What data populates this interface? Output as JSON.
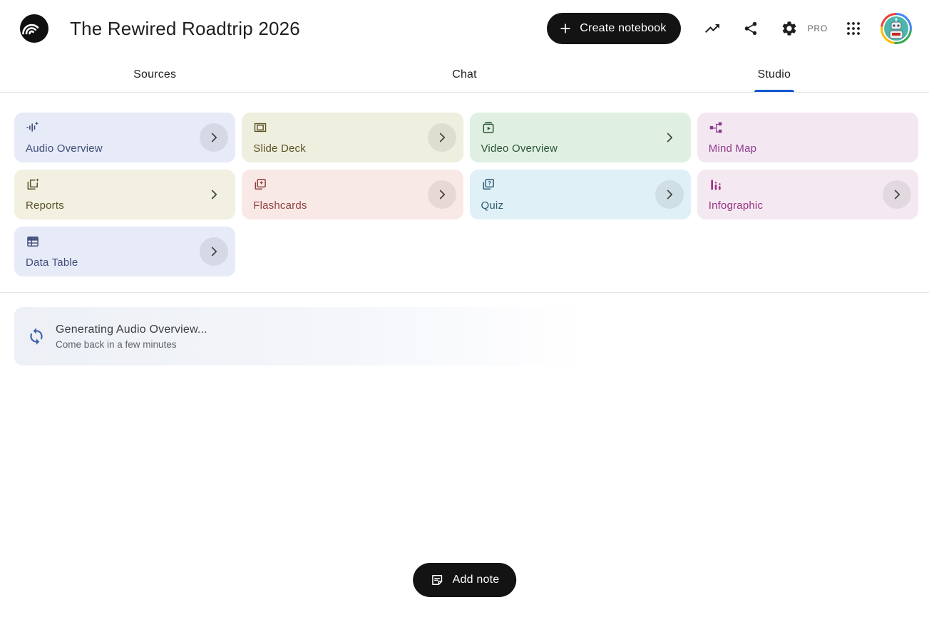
{
  "header": {
    "title": "The Rewired Roadtrip 2026",
    "create_button_label": "Create notebook",
    "pro_badge": "PRO"
  },
  "tabs": [
    {
      "label": "Sources",
      "active": false
    },
    {
      "label": "Chat",
      "active": false
    },
    {
      "label": "Studio",
      "active": true
    }
  ],
  "studio": {
    "cards": [
      {
        "label": "Audio Overview",
        "icon": "audio-waveform-sparkle-icon",
        "bg": "#e7eaf7",
        "fg": "#3f4d79",
        "chevron": "circle"
      },
      {
        "label": "Slide Deck",
        "icon": "slide-frame-icon",
        "bg": "#efefdf",
        "fg": "#5b5327",
        "chevron": "circle"
      },
      {
        "label": "Video Overview",
        "icon": "video-player-icon",
        "bg": "#dff0e2",
        "fg": "#2c5236",
        "chevron": "plain"
      },
      {
        "label": "Mind Map",
        "icon": "node-graph-icon",
        "bg": "#f3e8f1",
        "fg": "#8f3a8b",
        "chevron": "none"
      },
      {
        "label": "Reports",
        "icon": "layered-docs-sparkle-icon",
        "bg": "#f1f0e1",
        "fg": "#59522a",
        "chevron": "plain"
      },
      {
        "label": "Flashcards",
        "icon": "cards-star-icon",
        "bg": "#f9e9e6",
        "fg": "#8f3f3c",
        "chevron": "circle"
      },
      {
        "label": "Quiz",
        "icon": "cards-question-icon",
        "bg": "#dff0f7",
        "fg": "#2f5a70",
        "chevron": "circle"
      },
      {
        "label": "Infographic",
        "icon": "bar-chart-icon",
        "bg": "#f4e9f1",
        "fg": "#9a3083",
        "chevron": "circle"
      },
      {
        "label": "Data Table",
        "icon": "table-grid-icon",
        "bg": "#e7eaf7",
        "fg": "#3f4d79",
        "chevron": "circle"
      }
    ],
    "generating": {
      "title": "Generating Audio Overview...",
      "subtitle": "Come back in a few minutes",
      "icon": "sync-icon",
      "icon_color": "#3e61a8"
    },
    "add_note_label": "Add note"
  },
  "colors": {
    "accent_blue": "#0b57d0",
    "button_black": "#131314",
    "divider": "#e3e3e6"
  }
}
